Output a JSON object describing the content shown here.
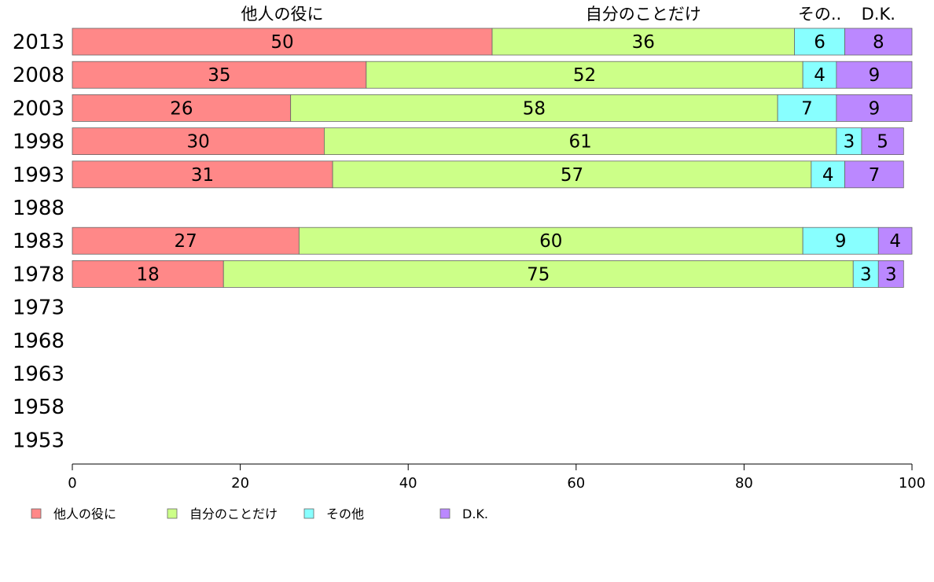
{
  "chart_data": {
    "type": "bar",
    "orientation": "horizontal",
    "stacked": true,
    "categories": [
      "2013",
      "2008",
      "2003",
      "1998",
      "1993",
      "1988",
      "1983",
      "1978",
      "1973",
      "1968",
      "1963",
      "1958",
      "1953"
    ],
    "series": [
      {
        "name": "他人の役に",
        "top_label": "他人の役に",
        "color": "#ff8888",
        "values": [
          50,
          35,
          26,
          30,
          31,
          null,
          27,
          18,
          null,
          null,
          null,
          null,
          null
        ]
      },
      {
        "name": "自分のことだけ",
        "top_label": "自分のことだけ",
        "color": "#ccff88",
        "values": [
          36,
          52,
          58,
          61,
          57,
          null,
          60,
          75,
          null,
          null,
          null,
          null,
          null
        ]
      },
      {
        "name": "その他",
        "top_label": "その..",
        "color": "#88ffff",
        "values": [
          6,
          4,
          7,
          3,
          4,
          null,
          9,
          3,
          null,
          null,
          null,
          null,
          null
        ]
      },
      {
        "name": "D.K.",
        "top_label": "D.K.",
        "color": "#bb88ff",
        "values": [
          8,
          9,
          9,
          5,
          7,
          null,
          4,
          3,
          null,
          null,
          null,
          null,
          null
        ]
      }
    ],
    "xlim": [
      0,
      100
    ],
    "xticks": [
      0,
      20,
      40,
      60,
      80,
      100
    ],
    "legend_position": "bottom"
  }
}
